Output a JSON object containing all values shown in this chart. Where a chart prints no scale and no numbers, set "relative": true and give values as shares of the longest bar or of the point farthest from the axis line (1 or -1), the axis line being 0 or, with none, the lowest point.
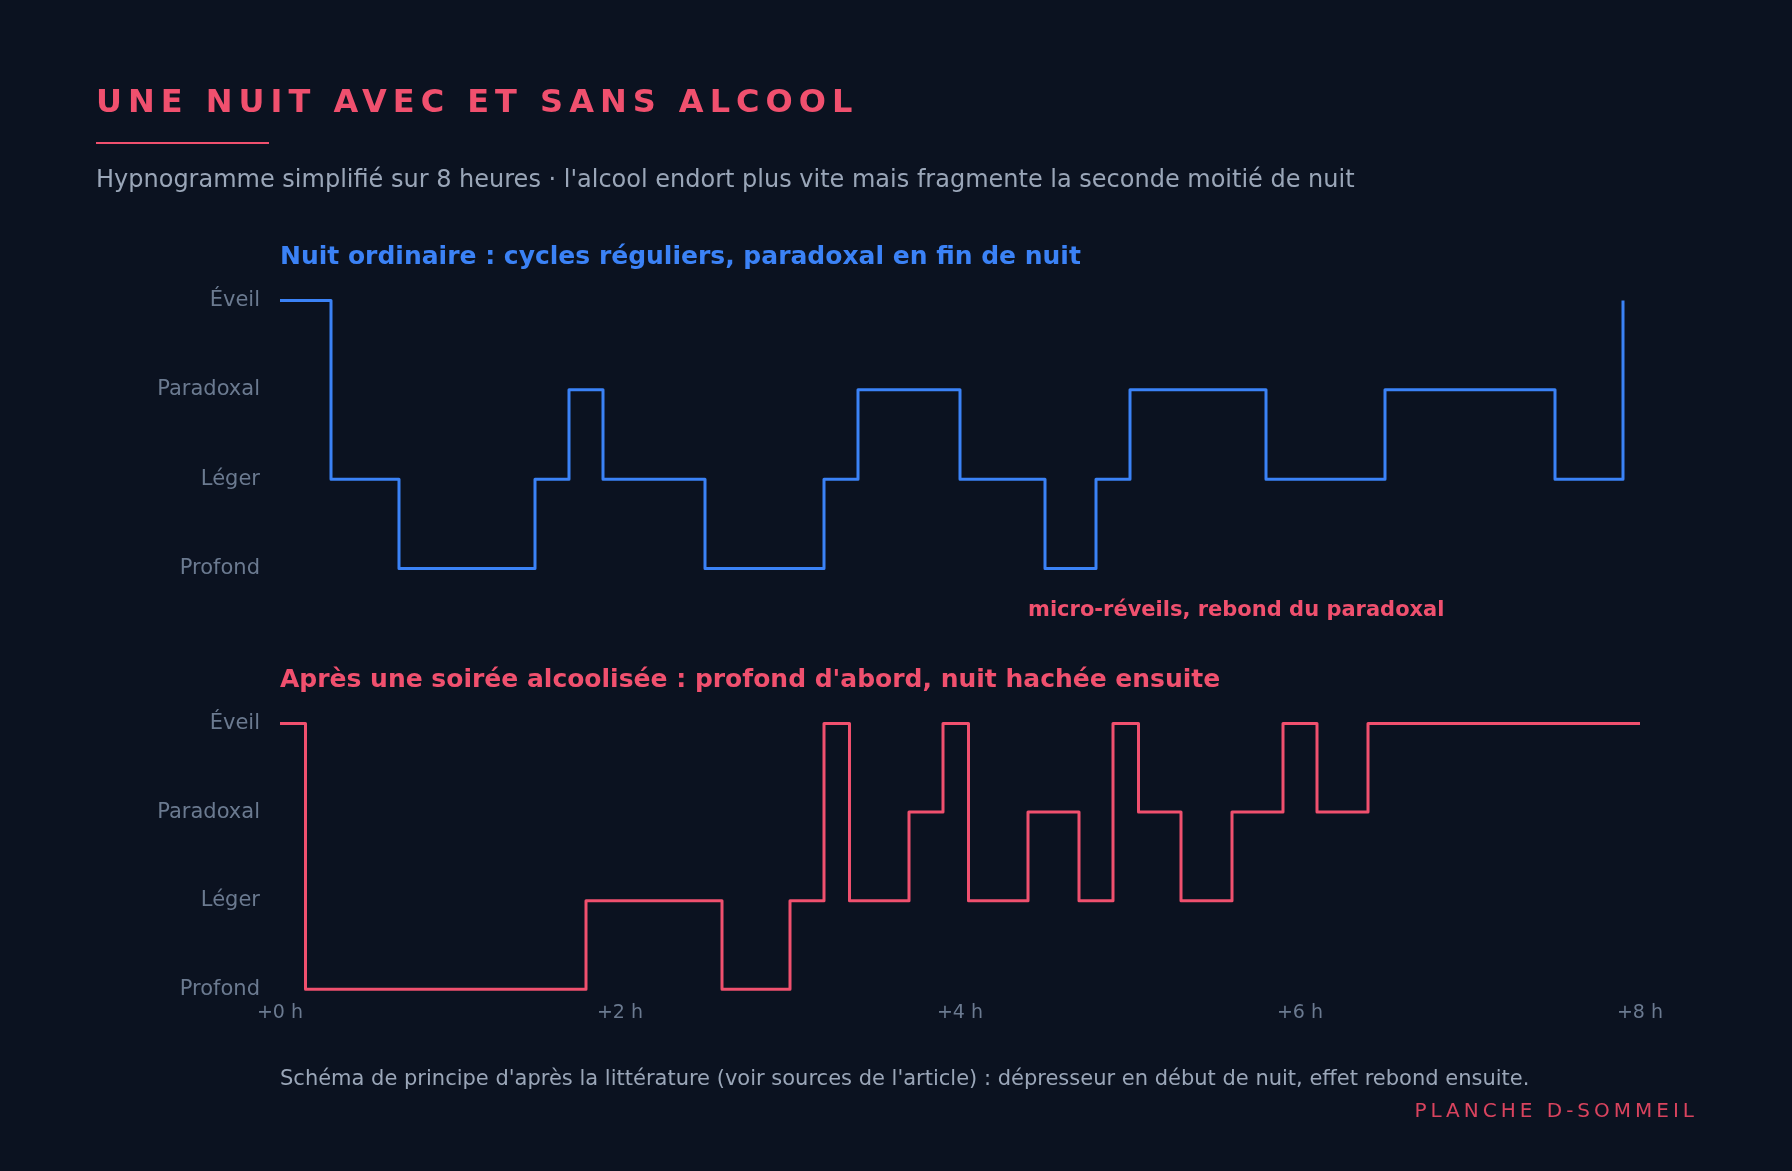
{
  "chart_data": [
    {
      "type": "step",
      "relative": true,
      "title": "UNE NUIT AVEC ET SANS ALCOOL",
      "subtitle": "Hypnogramme simplifié sur 8 heures · l'alcool endort plus vite mais fragmente la seconde moitié de nuit",
      "series": [
        {
          "name": "Nuit ordinaire : cycles réguliers, paradoxal en fin de nuit",
          "color": "#3b82f6",
          "x": [
            0,
            0.3,
            0.7,
            1.5,
            1.7,
            1.9,
            2.5,
            3.2,
            3.4,
            4.0,
            4.5,
            4.8,
            5.0,
            5.8,
            6.5,
            7.5,
            7.9
          ],
          "values": [
            1,
            0.333,
            0,
            0.333,
            0.667,
            0.333,
            0,
            0.333,
            0.667,
            0.333,
            0,
            0.333,
            0.667,
            0.333,
            0.667,
            0.333,
            1
          ]
        }
      ],
      "xlim": [
        0,
        8
      ],
      "y_categories": [
        "Éveil",
        "Paradoxal",
        "Léger",
        "Profond"
      ],
      "tick_labels": "y",
      "legend": false
    },
    {
      "type": "step",
      "relative": true,
      "series": [
        {
          "name": "Après une soirée alcoolisée : profond d'abord, nuit hachée ensuite",
          "color": "#f0506e",
          "x": [
            0,
            0.15,
            1.8,
            2.6,
            3.0,
            3.2,
            3.35,
            3.7,
            3.9,
            4.05,
            4.4,
            4.7,
            4.9,
            5.05,
            5.3,
            5.6,
            5.9,
            6.1,
            6.4,
            8
          ],
          "values": [
            1,
            0,
            0.333,
            0,
            0.333,
            1,
            0.333,
            0.667,
            1,
            0.333,
            0.667,
            0.333,
            1,
            0.667,
            0.333,
            0.667,
            1,
            0.667,
            1,
            1
          ]
        }
      ],
      "xlim": [
        0,
        8
      ],
      "xticks": [
        {
          "value": 0,
          "label": "+0 h"
        },
        {
          "value": 2,
          "label": "+2 h"
        },
        {
          "value": 4,
          "label": "+4 h"
        },
        {
          "value": 6,
          "label": "+6 h"
        },
        {
          "value": 8,
          "label": "+8 h"
        }
      ],
      "y_categories": [
        "Éveil",
        "Paradoxal",
        "Léger",
        "Profond"
      ],
      "legend": false,
      "annotations": [
        "micro-réveils, rebond du paradoxal",
        "Schéma de principe d'après la littérature (voir sources de l'article) : dépresseur en début de nuit, effet rebond ensuite.",
        "PLANCHE D-SOMMEIL"
      ]
    }
  ]
}
